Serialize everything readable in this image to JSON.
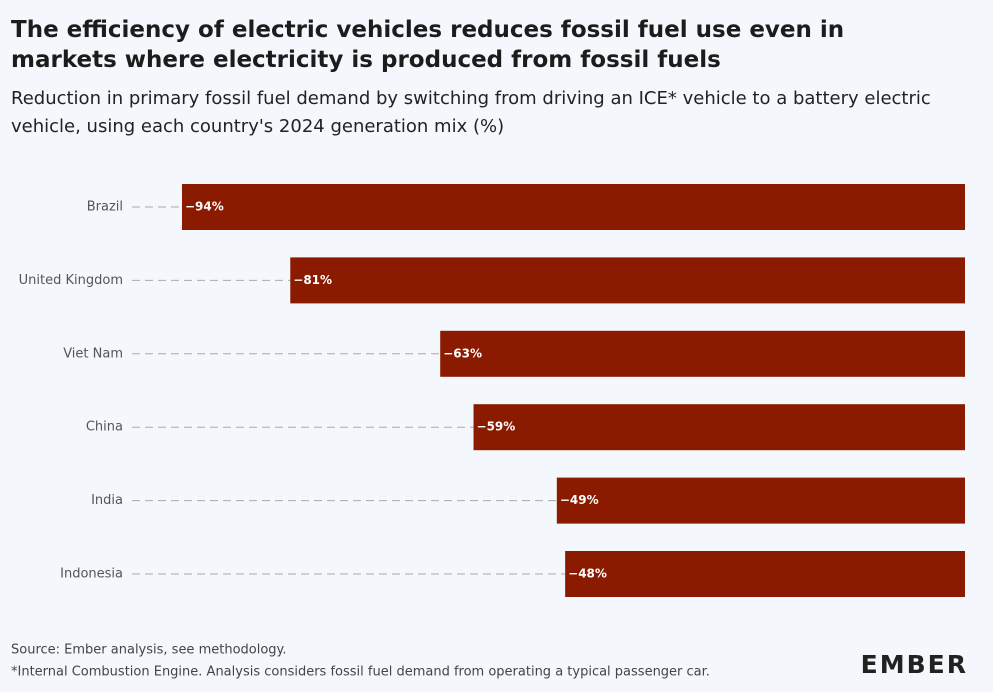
{
  "chart_data": {
    "type": "bar",
    "orientation": "horizontal",
    "title": "The efficiency of electric vehicles reduces fossil fuel use even in markets where electricity is produced from fossil fuels",
    "subtitle": "Reduction in primary fossil fuel demand by switching from driving an ICE* vehicle to a battery electric vehicle, using each country's 2024 generation mix (%)",
    "categories": [
      "Brazil",
      "United Kingdom",
      "Viet Nam",
      "China",
      "India",
      "Indonesia"
    ],
    "values": [
      -94,
      -81,
      -63,
      -59,
      -49,
      -48
    ],
    "value_labels": [
      "−94%",
      "−81%",
      "−63%",
      "−59%",
      "−49%",
      "−48%"
    ],
    "color": "#8a1a00",
    "xlim": [
      -100,
      0
    ],
    "source": "Source: Ember analysis, see methodology.",
    "note": "*Internal Combustion Engine. Analysis considers fossil fuel demand from operating a typical passenger car.",
    "logo": "EMBER"
  }
}
